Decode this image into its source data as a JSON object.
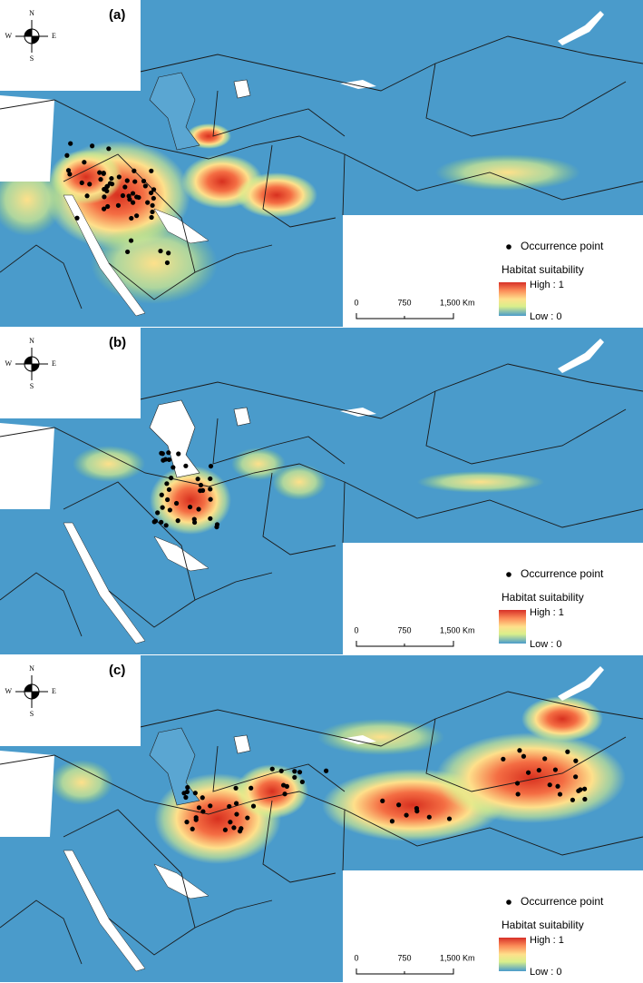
{
  "panels": [
    {
      "label": "(a)",
      "compass": {
        "n": "N",
        "s": "S",
        "w": "W",
        "e": "E"
      },
      "legend": {
        "occurrence": "Occurrence point",
        "suitability": "Habitat suitability",
        "high": "High : 1",
        "low": "Low : 0"
      },
      "scale": {
        "start": "0",
        "mid": "750",
        "end": "1,500 Km"
      }
    },
    {
      "label": "(b)",
      "compass": {
        "n": "N",
        "s": "S",
        "w": "W",
        "e": "E"
      },
      "legend": {
        "occurrence": "Occurrence point",
        "suitability": "Habitat suitability",
        "high": "High : 1",
        "low": "Low : 0"
      },
      "scale": {
        "start": "0",
        "mid": "750",
        "end": "1,500 Km"
      }
    },
    {
      "label": "(c)",
      "compass": {
        "n": "N",
        "s": "S",
        "w": "W",
        "e": "E"
      },
      "legend": {
        "occurrence": "Occurrence point",
        "suitability": "Habitat suitability",
        "high": "High : 1",
        "low": "Low : 0"
      },
      "scale": {
        "start": "0",
        "mid": "750",
        "end": "1,500 Km"
      }
    }
  ]
}
